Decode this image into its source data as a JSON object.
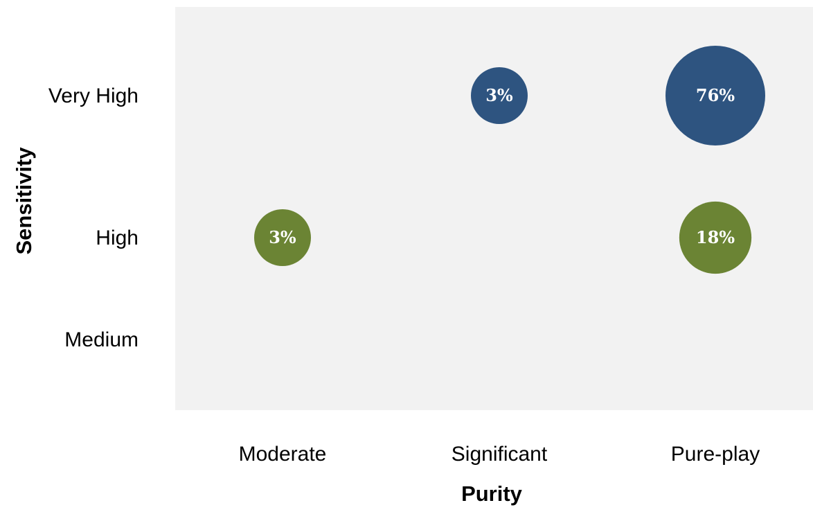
{
  "chart_data": {
    "type": "bubble",
    "title": "",
    "xlabel": "Purity",
    "ylabel": "Sensitivity",
    "x_categories": [
      "Moderate",
      "Significant",
      "Pure-play"
    ],
    "y_categories": [
      "Medium",
      "High",
      "Very High"
    ],
    "grid": false,
    "legend": "none",
    "plot_background": "#f2f2f2",
    "points": [
      {
        "x": "Significant",
        "y": "Very High",
        "value": 3,
        "label": "3%",
        "color": "#2e5480"
      },
      {
        "x": "Pure-play",
        "y": "Very High",
        "value": 76,
        "label": "76%",
        "color": "#2e5480"
      },
      {
        "x": "Moderate",
        "y": "High",
        "value": 3,
        "label": "3%",
        "color": "#6b8434"
      },
      {
        "x": "Pure-play",
        "y": "High",
        "value": 18,
        "label": "18%",
        "color": "#6b8434"
      }
    ]
  }
}
